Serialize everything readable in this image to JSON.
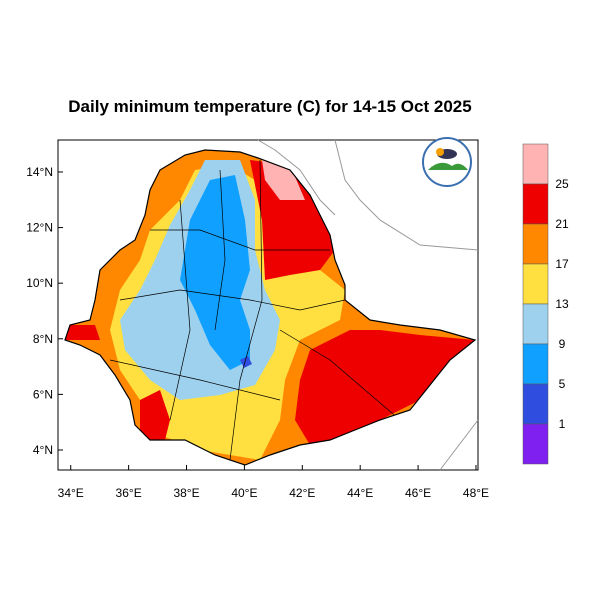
{
  "title": "Daily minimum temperature (C) for 14-15 Oct 2025",
  "map": {
    "extent_lon": [
      33.56,
      48.07
    ],
    "extent_lat": [
      3.28,
      15.15
    ],
    "lon_ticks": [
      "34°E",
      "36°E",
      "38°E",
      "40°E",
      "42°E",
      "44°E",
      "46°E",
      "48°E"
    ],
    "lat_ticks": [
      "14°N",
      "12°N",
      "10°N",
      "8°N",
      "6°N",
      "4°N"
    ],
    "lon_values": [
      34,
      36,
      38,
      40,
      42,
      44,
      46,
      48
    ],
    "lat_values": [
      14,
      12,
      10,
      8,
      6,
      4
    ]
  },
  "legend": {
    "labels": [
      "25",
      "21",
      "17",
      "13",
      "9",
      "5",
      "1"
    ],
    "colors": [
      "#ffb3b3",
      "#ee0000",
      "#ff8800",
      "#ffe040",
      "#9ed1ee",
      "#10a0ff",
      "#2f4ee0",
      "#8020f0"
    ]
  },
  "logo": {
    "name": "ethiopian-meteorology-institute-logo"
  }
}
